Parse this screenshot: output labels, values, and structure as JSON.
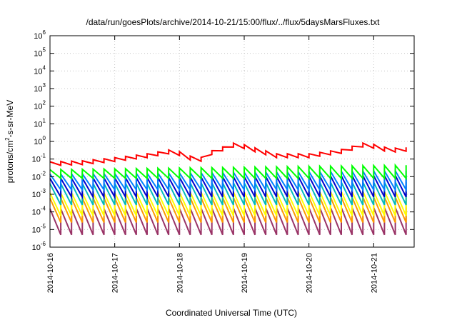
{
  "chart_data": {
    "type": "line",
    "title": "/data/run/goesPlots/archive/2014-10-21/15:00/flux/../flux/5daysMarsFluxes.txt",
    "xlabel": "Coordinated Universal Time (UTC)",
    "ylabel_parts": [
      "protons/cm",
      "2",
      "-s-sr-MeV"
    ],
    "x_range": [
      "2014-10-16T00:00",
      "2014-10-21T15:00"
    ],
    "x_ticks": [
      "2014-10-16",
      "2014-10-17",
      "2014-10-18",
      "2014-10-19",
      "2014-10-20",
      "2014-10-21"
    ],
    "y_scale": "log",
    "y_range": [
      1e-06,
      1000000.0
    ],
    "y_ticks": [
      {
        "base": "10",
        "exp": "-6"
      },
      {
        "base": "10",
        "exp": "-5"
      },
      {
        "base": "10",
        "exp": "-4"
      },
      {
        "base": "10",
        "exp": "-3"
      },
      {
        "base": "10",
        "exp": "-2"
      },
      {
        "base": "10",
        "exp": "-1"
      },
      {
        "base": "10",
        "exp": "0"
      },
      {
        "base": "10",
        "exp": "1"
      },
      {
        "base": "10",
        "exp": "2"
      },
      {
        "base": "10",
        "exp": "3"
      },
      {
        "base": "10",
        "exp": "4"
      },
      {
        "base": "10",
        "exp": "5"
      },
      {
        "base": "10",
        "exp": "6"
      }
    ],
    "grid": true,
    "sawtooth_period_hours": 4,
    "series": [
      {
        "color": "#ff0000",
        "pattern": "drifting",
        "trend": [
          [
            "2014-10-16T00:00",
            0.07
          ],
          [
            "2014-10-16T12:00",
            0.08
          ],
          [
            "2014-10-17T00:00",
            0.12
          ],
          [
            "2014-10-17T12:00",
            0.2
          ],
          [
            "2014-10-17T21:00",
            0.35
          ],
          [
            "2014-10-18T03:00",
            0.2
          ],
          [
            "2014-10-18T06:00",
            0.08
          ],
          [
            "2014-10-18T12:00",
            0.3
          ],
          [
            "2014-10-18T21:00",
            0.9
          ],
          [
            "2014-10-19T06:00",
            0.35
          ],
          [
            "2014-10-19T12:00",
            0.2
          ],
          [
            "2014-10-20T00:00",
            0.2
          ],
          [
            "2014-10-20T12:00",
            0.35
          ],
          [
            "2014-10-20T21:00",
            0.9
          ],
          [
            "2014-10-21T06:00",
            0.4
          ],
          [
            "2014-10-21T15:00",
            0.5
          ]
        ],
        "drop_factor": 0.6
      },
      {
        "color": "#00ff00",
        "pattern": "sawtooth",
        "low": 0.008,
        "high": 0.025,
        "high_end": 0.045
      },
      {
        "color": "#0080ff",
        "pattern": "sawtooth",
        "low": 0.0018,
        "high": 0.014,
        "high_end": 0.022
      },
      {
        "color": "#0000cc",
        "pattern": "sawtooth",
        "low": 0.0007,
        "high": 0.008,
        "high_end": 0.012
      },
      {
        "color": "#00bbbb",
        "pattern": "sawtooth",
        "low": 0.00025,
        "high": 0.004,
        "high_end": 0.005
      },
      {
        "color": "#ffff00",
        "pattern": "sawtooth",
        "low": 6e-05,
        "high": 0.0012,
        "high_end": 0.0015
      },
      {
        "color": "#ff9900",
        "pattern": "sawtooth",
        "low": 2.5e-05,
        "high": 0.0006,
        "high_end": 0.0007
      },
      {
        "color": "#993366",
        "pattern": "sawtooth",
        "low": 5e-06,
        "high": 0.00015,
        "high_end": 0.00018
      }
    ]
  }
}
